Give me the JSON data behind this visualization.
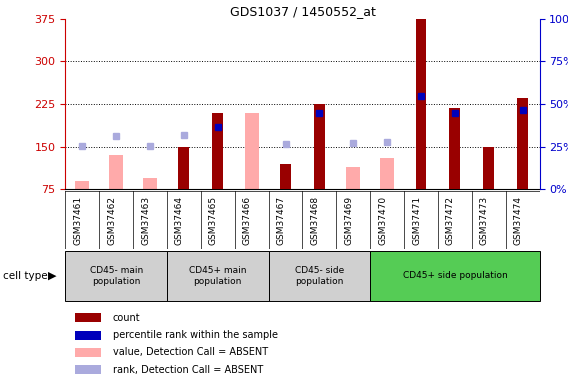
{
  "title": "GDS1037 / 1450552_at",
  "samples": [
    "GSM37461",
    "GSM37462",
    "GSM37463",
    "GSM37464",
    "GSM37465",
    "GSM37466",
    "GSM37467",
    "GSM37468",
    "GSM37469",
    "GSM37470",
    "GSM37471",
    "GSM37472",
    "GSM37473",
    "GSM37474"
  ],
  "count_values": [
    null,
    null,
    null,
    150,
    210,
    null,
    120,
    225,
    null,
    null,
    375,
    218,
    150,
    235
  ],
  "rank_values": [
    null,
    null,
    null,
    null,
    185,
    null,
    null,
    210,
    null,
    null,
    240,
    210,
    null,
    215
  ],
  "absent_value_bars": [
    90,
    135,
    95,
    null,
    null,
    210,
    null,
    null,
    115,
    130,
    null,
    null,
    null,
    null
  ],
  "absent_rank_bars": [
    152,
    168,
    152,
    170,
    null,
    null,
    155,
    null,
    157,
    158,
    null,
    null,
    null,
    null
  ],
  "groups": [
    {
      "label": "CD45- main\npopulation",
      "indices": [
        0,
        1,
        2
      ],
      "color": "#d0d0d0"
    },
    {
      "label": "CD45+ main\npopulation",
      "indices": [
        3,
        4,
        5
      ],
      "color": "#d0d0d0"
    },
    {
      "label": "CD45- side\npopulation",
      "indices": [
        6,
        7,
        8
      ],
      "color": "#d0d0d0"
    },
    {
      "label": "CD45+ side population",
      "indices": [
        9,
        10,
        11,
        12,
        13
      ],
      "color": "#55cc55"
    }
  ],
  "ylim_left": [
    75,
    375
  ],
  "ylim_right": [
    0,
    100
  ],
  "left_yticks": [
    75,
    150,
    225,
    300,
    375
  ],
  "right_yticks": [
    0,
    25,
    50,
    75,
    100
  ],
  "bar_color_count": "#990000",
  "bar_color_rank": "#0000bb",
  "bar_color_absent_value": "#ffaaaa",
  "bar_color_absent_rank": "#aaaadd",
  "grid_color": "black",
  "background_color": "white",
  "left_axis_color": "#cc0000",
  "right_axis_color": "#0000cc",
  "cell_type_label": "cell type",
  "legend_items": [
    {
      "color": "#990000",
      "label": "count"
    },
    {
      "color": "#0000bb",
      "label": "percentile rank within the sample"
    },
    {
      "color": "#ffaaaa",
      "label": "value, Detection Call = ABSENT"
    },
    {
      "color": "#aaaadd",
      "label": "rank, Detection Call = ABSENT"
    }
  ]
}
